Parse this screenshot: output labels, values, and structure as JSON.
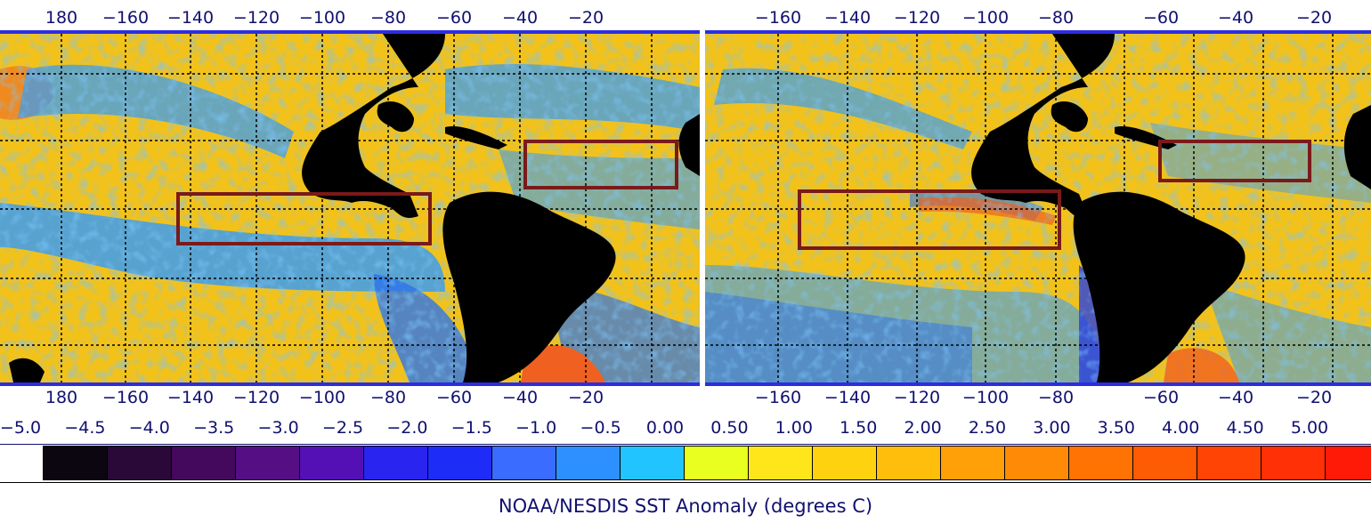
{
  "left_panel": {
    "top_axis": [
      "180",
      "−160",
      "−140",
      "−120",
      "−100",
      "−80",
      "−60",
      "−40",
      "−20"
    ],
    "bottom_axis": [
      "180",
      "−160",
      "−140",
      "−120",
      "−100",
      "−80",
      "−60",
      "−40",
      "−20"
    ]
  },
  "right_panel": {
    "top_axis": [
      "−160",
      "−140",
      "−120",
      "−100",
      "−80",
      "−60",
      "−40",
      "−20"
    ],
    "bottom_axis": [
      "−160",
      "−140",
      "−120",
      "−100",
      "−80",
      "−60",
      "−40",
      "−20"
    ]
  },
  "color_scale": {
    "ticks": [
      "−5.0",
      "−4.5",
      "−4.0",
      "−3.5",
      "−3.0",
      "−2.5",
      "−2.0",
      "−1.5",
      "−1.0",
      "−0.5",
      "0.00",
      "0.50",
      "1.00",
      "1.50",
      "2.00",
      "2.50",
      "3.00",
      "3.50",
      "4.00",
      "4.50",
      "5.00"
    ],
    "colors": [
      "#0b0610",
      "#2a0838",
      "#44085c",
      "#550e84",
      "#5410b4",
      "#2a24f0",
      "#1e2cf8",
      "#3a6cff",
      "#2e90ff",
      "#22c4ff",
      "#e8ff20",
      "#ffe61a",
      "#ffd210",
      "#ffbe0c",
      "#ffa008",
      "#ff8a06",
      "#ff7204",
      "#ff5a04",
      "#ff4406",
      "#ff3006",
      "#ff1a08"
    ]
  },
  "colors": {
    "land": "#000000",
    "ocean_warm": "#f2c21a",
    "ocean_cool": "#3c9cf0",
    "ocean_deep_cool": "#2850e0",
    "region_box": "#7a1a1a",
    "grid": "#000000",
    "frame_border": "#2d2de0"
  },
  "caption": "NOAA/NESDIS SST Anomaly (degrees C)"
}
